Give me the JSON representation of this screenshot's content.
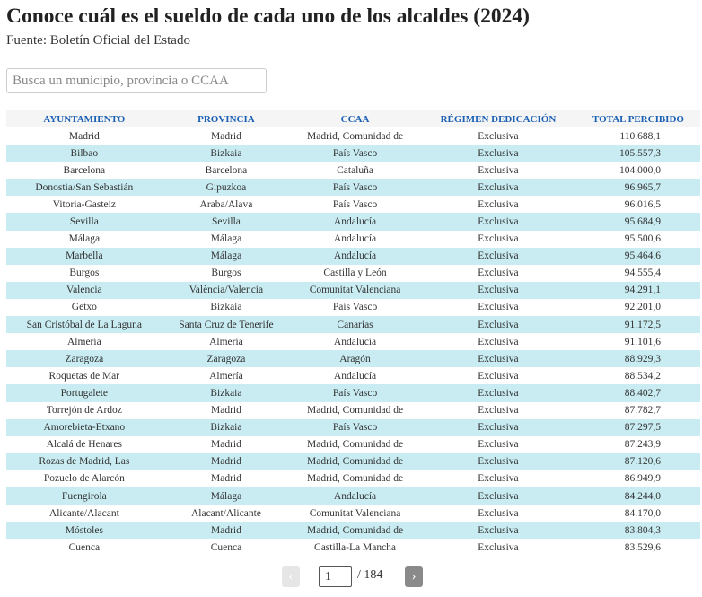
{
  "header": {
    "title": "Conoce cuál es el sueldo de cada uno de los alcaldes (2024)",
    "source": "Fuente: Boletín Oficial del Estado"
  },
  "search": {
    "placeholder": "Busca un municipio, provincia o CCAA"
  },
  "table": {
    "columns": [
      "AYUNTAMIENTO",
      "PROVINCIA",
      "CCAA",
      "RÉGIMEN DEDICACIÓN",
      "TOTAL PERCIBIDO"
    ],
    "rows": [
      [
        "Madrid",
        "Madrid",
        "Madrid, Comunidad de",
        "Exclusiva",
        "110.688,1"
      ],
      [
        "Bilbao",
        "Bizkaia",
        "País Vasco",
        "Exclusiva",
        "105.557,3"
      ],
      [
        "Barcelona",
        "Barcelona",
        "Cataluña",
        "Exclusiva",
        "104.000,0"
      ],
      [
        "Donostia/San Sebastián",
        "Gipuzkoa",
        "País Vasco",
        "Exclusiva",
        "96.965,7"
      ],
      [
        "Vitoria-Gasteiz",
        "Araba/Alava",
        "País Vasco",
        "Exclusiva",
        "96.016,5"
      ],
      [
        "Sevilla",
        "Sevilla",
        "Andalucía",
        "Exclusiva",
        "95.684,9"
      ],
      [
        "Málaga",
        "Málaga",
        "Andalucía",
        "Exclusiva",
        "95.500,6"
      ],
      [
        "Marbella",
        "Málaga",
        "Andalucía",
        "Exclusiva",
        "95.464,6"
      ],
      [
        "Burgos",
        "Burgos",
        "Castilla y León",
        "Exclusiva",
        "94.555,4"
      ],
      [
        "Valencia",
        "València/Valencia",
        "Comunitat Valenciana",
        "Exclusiva",
        "94.291,1"
      ],
      [
        "Getxo",
        "Bizkaia",
        "País Vasco",
        "Exclusiva",
        "92.201,0"
      ],
      [
        "San Cristóbal de La Laguna",
        "Santa Cruz de Tenerife",
        "Canarias",
        "Exclusiva",
        "91.172,5"
      ],
      [
        "Almería",
        "Almería",
        "Andalucía",
        "Exclusiva",
        "91.101,6"
      ],
      [
        "Zaragoza",
        "Zaragoza",
        "Aragón",
        "Exclusiva",
        "88.929,3"
      ],
      [
        "Roquetas de Mar",
        "Almería",
        "Andalucía",
        "Exclusiva",
        "88.534,2"
      ],
      [
        "Portugalete",
        "Bizkaia",
        "País Vasco",
        "Exclusiva",
        "88.402,7"
      ],
      [
        "Torrejón de Ardoz",
        "Madrid",
        "Madrid, Comunidad de",
        "Exclusiva",
        "87.782,7"
      ],
      [
        "Amorebieta-Etxano",
        "Bizkaia",
        "País Vasco",
        "Exclusiva",
        "87.297,5"
      ],
      [
        "Alcalá de Henares",
        "Madrid",
        "Madrid, Comunidad de",
        "Exclusiva",
        "87.243,9"
      ],
      [
        "Rozas de Madrid, Las",
        "Madrid",
        "Madrid, Comunidad de",
        "Exclusiva",
        "87.120,6"
      ],
      [
        "Pozuelo de Alarcón",
        "Madrid",
        "Madrid, Comunidad de",
        "Exclusiva",
        "86.949,9"
      ],
      [
        "Fuengirola",
        "Málaga",
        "Andalucía",
        "Exclusiva",
        "84.244,0"
      ],
      [
        "Alicante/Alacant",
        "Alacant/Alicante",
        "Comunitat Valenciana",
        "Exclusiva",
        "84.170,0"
      ],
      [
        "Móstoles",
        "Madrid",
        "Madrid, Comunidad de",
        "Exclusiva",
        "83.804,3"
      ],
      [
        "Cuenca",
        "Cuenca",
        "Castilla-La Mancha",
        "Exclusiva",
        "83.529,6"
      ]
    ]
  },
  "pagination": {
    "prev": "‹",
    "page": "1",
    "total": "/ 184",
    "next": "›"
  }
}
